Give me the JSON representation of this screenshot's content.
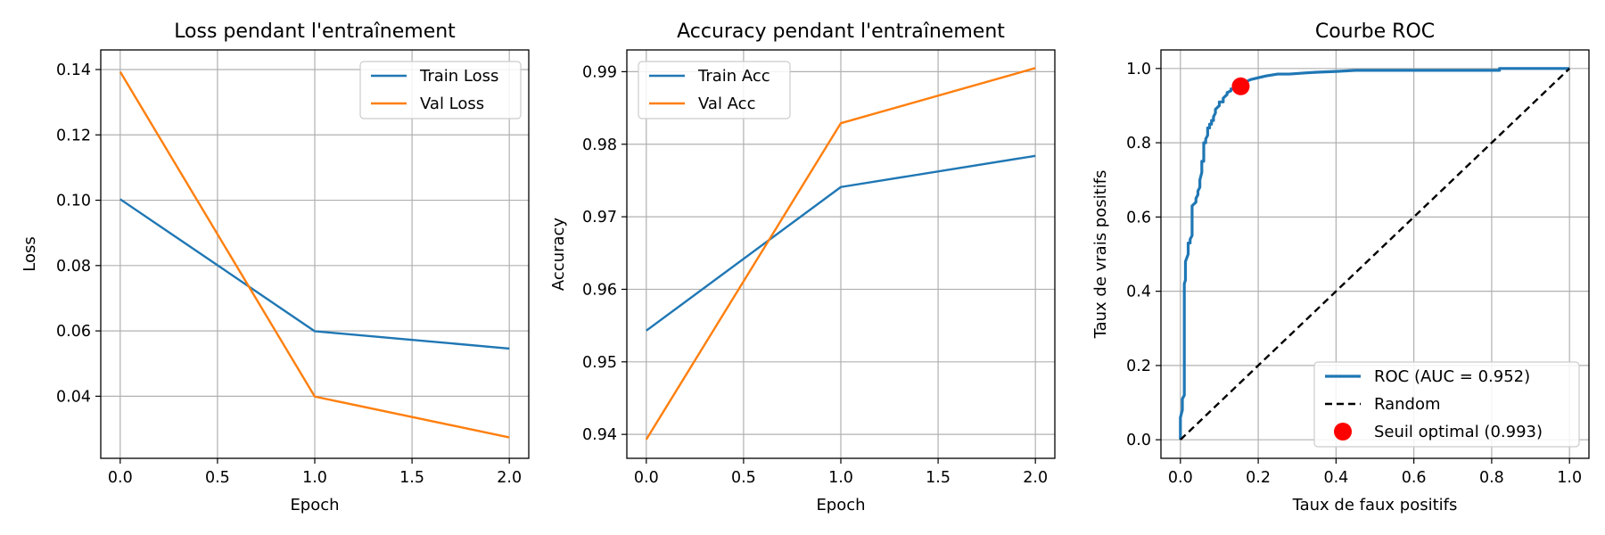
{
  "chart_data": [
    {
      "type": "line",
      "title": "Loss pendant l'entraînement",
      "xlabel": "Epoch",
      "ylabel": "Loss",
      "xlim": [
        -0.1,
        2.1
      ],
      "ylim": [
        0.021,
        0.146
      ],
      "xticks": [
        "0.0",
        "0.5",
        "1.0",
        "1.5",
        "2.0"
      ],
      "yticks": [
        "0.04",
        "0.06",
        "0.08",
        "0.10",
        "0.12",
        "0.14"
      ],
      "grid": true,
      "legend_position": "top-right",
      "x": [
        0,
        1,
        2
      ],
      "series": [
        {
          "name": "Train Loss",
          "color": "#1f77b4",
          "values": [
            0.1003,
            0.0599,
            0.0546
          ]
        },
        {
          "name": "Val Loss",
          "color": "#ff7f0e",
          "values": [
            0.1393,
            0.0399,
            0.0274
          ]
        }
      ]
    },
    {
      "type": "line",
      "title": "Accuracy pendant l'entraînement",
      "xlabel": "Epoch",
      "ylabel": "Accuracy",
      "xlim": [
        -0.1,
        2.1
      ],
      "ylim": [
        0.9367,
        0.993
      ],
      "xticks": [
        "0.0",
        "0.5",
        "1.0",
        "1.5",
        "2.0"
      ],
      "yticks": [
        "0.94",
        "0.95",
        "0.96",
        "0.97",
        "0.98",
        "0.99"
      ],
      "grid": true,
      "legend_position": "top-left",
      "x": [
        0,
        1,
        2
      ],
      "series": [
        {
          "name": "Train Acc",
          "color": "#1f77b4",
          "values": [
            0.9543,
            0.9741,
            0.9784
          ]
        },
        {
          "name": "Val Acc",
          "color": "#ff7f0e",
          "values": [
            0.9393,
            0.9829,
            0.9905
          ]
        }
      ]
    },
    {
      "type": "line",
      "title": "Courbe ROC",
      "xlabel": "Taux de faux positifs",
      "ylabel": "Taux de vrais positifs",
      "xlim": [
        -0.05,
        1.05
      ],
      "ylim": [
        -0.05,
        1.05
      ],
      "xticks": [
        "0.0",
        "0.2",
        "0.4",
        "0.6",
        "0.8",
        "1.0"
      ],
      "yticks": [
        "0.0",
        "0.2",
        "0.4",
        "0.6",
        "0.8",
        "1.0"
      ],
      "grid": true,
      "legend_position": "bottom-right",
      "series": [
        {
          "name": "ROC (AUC = 0.952)",
          "color": "#1f77b4",
          "style": "solid",
          "x": [
            0,
            0,
            0.005,
            0.005,
            0.01,
            0.01,
            0.013,
            0.013,
            0.02,
            0.02,
            0.025,
            0.025,
            0.03,
            0.03,
            0.04,
            0.04,
            0.045,
            0.045,
            0.05,
            0.05,
            0.055,
            0.055,
            0.06,
            0.06,
            0.065,
            0.065,
            0.07,
            0.07,
            0.075,
            0.075,
            0.08,
            0.08,
            0.085,
            0.085,
            0.09,
            0.09,
            0.1,
            0.1,
            0.11,
            0.11,
            0.12,
            0.12,
            0.13,
            0.13,
            0.14,
            0.14,
            0.15,
            0.15,
            0.16,
            0.17,
            0.18,
            0.2,
            0.22,
            0.25,
            0.28,
            0.32,
            0.35,
            0.4,
            0.45,
            0.6,
            0.82,
            0.82,
            1.0
          ],
          "y": [
            0,
            0.06,
            0.08,
            0.11,
            0.12,
            0.42,
            0.43,
            0.48,
            0.5,
            0.53,
            0.53,
            0.54,
            0.55,
            0.63,
            0.64,
            0.65,
            0.66,
            0.67,
            0.68,
            0.7,
            0.72,
            0.75,
            0.75,
            0.8,
            0.8,
            0.81,
            0.82,
            0.84,
            0.84,
            0.85,
            0.85,
            0.86,
            0.86,
            0.87,
            0.88,
            0.89,
            0.9,
            0.91,
            0.91,
            0.92,
            0.93,
            0.935,
            0.94,
            0.945,
            0.945,
            0.95,
            0.95,
            0.955,
            0.96,
            0.965,
            0.97,
            0.975,
            0.98,
            0.985,
            0.985,
            0.988,
            0.99,
            0.992,
            0.995,
            0.995,
            0.995,
            1.0,
            1.0
          ]
        },
        {
          "name": "Random",
          "color": "#000000",
          "style": "dashed",
          "x": [
            0,
            1
          ],
          "y": [
            0,
            1
          ]
        }
      ],
      "points": [
        {
          "name": "Seuil optimal (0.993)",
          "color": "#ff0000",
          "x": 0.155,
          "y": 0.952
        }
      ]
    }
  ]
}
